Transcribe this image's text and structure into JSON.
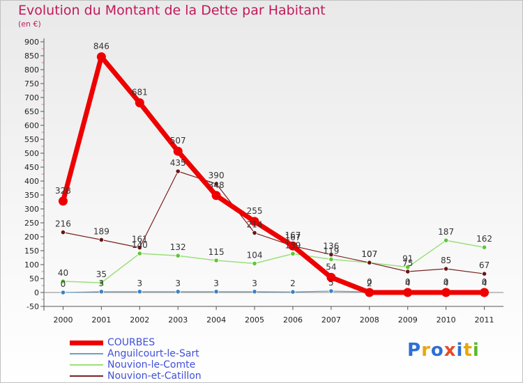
{
  "title": "Evolution du Montant de la Dette par Habitant",
  "unit": "(en €)",
  "brand": {
    "logo_text": "Proxiti"
  },
  "chart_data": {
    "type": "line",
    "title": "Evolution du Montant de la Dette par Habitant",
    "ylabel": "(en €)",
    "xlabel": "",
    "ylim": [
      -50,
      900
    ],
    "ytick_step": 50,
    "categories": [
      "2000",
      "2001",
      "2002",
      "2003",
      "2004",
      "2005",
      "2006",
      "2007",
      "2008",
      "2009",
      "2010",
      "2011"
    ],
    "series": [
      {
        "name": "Nouvion-le-Comte",
        "color": "#9be07a",
        "marker": "#5fc53a",
        "width": 1.5,
        "values": [
          40,
          35,
          140,
          132,
          115,
          104,
          139,
          119,
          107,
          91,
          187,
          162
        ],
        "labels": [
          "40",
          "35",
          "140",
          "132",
          "115",
          "104",
          "139",
          "119",
          "107",
          "91",
          "187",
          "162"
        ]
      },
      {
        "name": "Nouvion-et-Catillon",
        "color": "#7a2020",
        "marker": "#6b1515",
        "width": 1.2,
        "values": [
          216,
          189,
          161,
          435,
          390,
          214,
          167,
          136,
          107,
          75,
          85,
          67
        ],
        "labels": [
          "216",
          "189",
          "161",
          "435",
          "390",
          "214",
          "167",
          "136",
          "107",
          "75",
          "85",
          "67"
        ]
      },
      {
        "name": "Anguilcourt-le-Sart",
        "color": "#6aa0c8",
        "marker": "#3b82c4",
        "width": 1.2,
        "values": [
          0,
          3,
          3,
          3,
          3,
          3,
          2,
          5,
          2,
          4,
          4,
          4
        ],
        "labels": [
          "0",
          "3",
          "3",
          "3",
          "3",
          "3",
          "2",
          "5",
          "2",
          "4",
          "4",
          "4"
        ]
      },
      {
        "name": "COURBES",
        "color": "#ee0000",
        "marker": "#ee0000",
        "width": 7,
        "values": [
          328,
          846,
          681,
          507,
          348,
          255,
          167,
          54,
          0,
          0,
          0,
          0
        ],
        "labels": [
          "328",
          "846",
          "681",
          "507",
          "348",
          "255",
          "167",
          "54",
          "0",
          "0",
          "0",
          "0"
        ]
      }
    ],
    "legend_order": [
      "COURBES",
      "Anguilcourt-le-Sart",
      "Nouvion-le-Comte",
      "Nouvion-et-Catillon"
    ],
    "legend": "bottom-left"
  }
}
